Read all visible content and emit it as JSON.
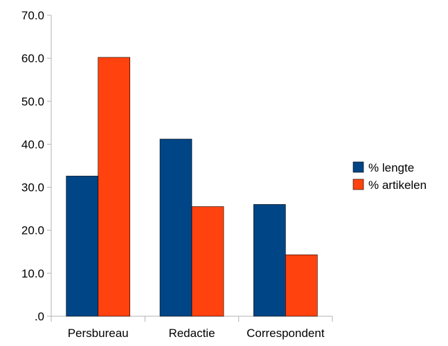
{
  "chart_data": {
    "type": "bar",
    "title": "",
    "xlabel": "",
    "ylabel": "",
    "categories": [
      "Persbureau",
      "Redactie",
      "Correspondent"
    ],
    "series": [
      {
        "name": "% lengte",
        "color": "#004586",
        "values": [
          32.6,
          41.2,
          26.0
        ]
      },
      {
        "name": "% artikelen",
        "color": "#ff420e",
        "values": [
          60.2,
          25.5,
          14.3
        ]
      }
    ],
    "ylim": [
      0,
      70
    ],
    "yticks": [
      0,
      10,
      20,
      30,
      40,
      50,
      60,
      70
    ],
    "ytick_labels": [
      ".0",
      "10.0",
      "20.0",
      "30.0",
      "40.0",
      "50.0",
      "60.0",
      "70.0"
    ],
    "grid": false,
    "legend_position": "right"
  }
}
